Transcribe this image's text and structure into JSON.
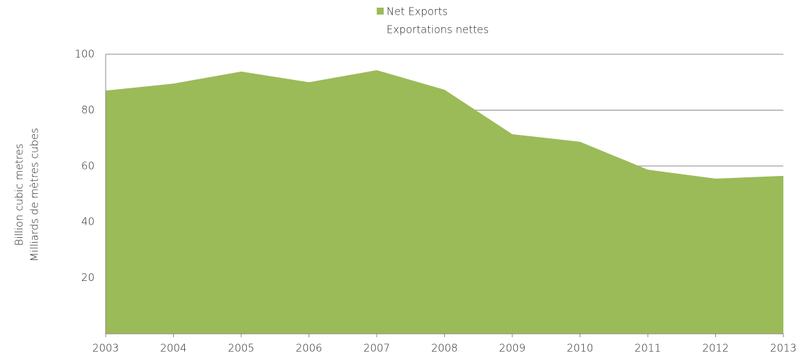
{
  "chart_data": {
    "type": "area",
    "legend_labels": [
      "Net Exports",
      "Exportations nettes"
    ],
    "ylabel": [
      "Billion cubic metres",
      "Milliards de mètres cubes"
    ],
    "x": [
      2003,
      2004,
      2005,
      2006,
      2007,
      2008,
      2009,
      2010,
      2011,
      2012,
      2013
    ],
    "series": [
      {
        "name": "Net Exports",
        "color": "#9bbb59",
        "values": [
          87,
          89.5,
          93.8,
          90,
          94.3,
          87.3,
          71.4,
          68.7,
          58.7,
          55.5,
          56.5
        ]
      }
    ],
    "xlim": [
      2003,
      2013
    ],
    "xticks": [
      2003,
      2004,
      2005,
      2006,
      2007,
      2008,
      2009,
      2010,
      2011,
      2012,
      2013
    ],
    "ylim": [
      0,
      100
    ],
    "yticks": [
      20,
      40,
      60,
      80,
      100
    ],
    "grid": true
  }
}
